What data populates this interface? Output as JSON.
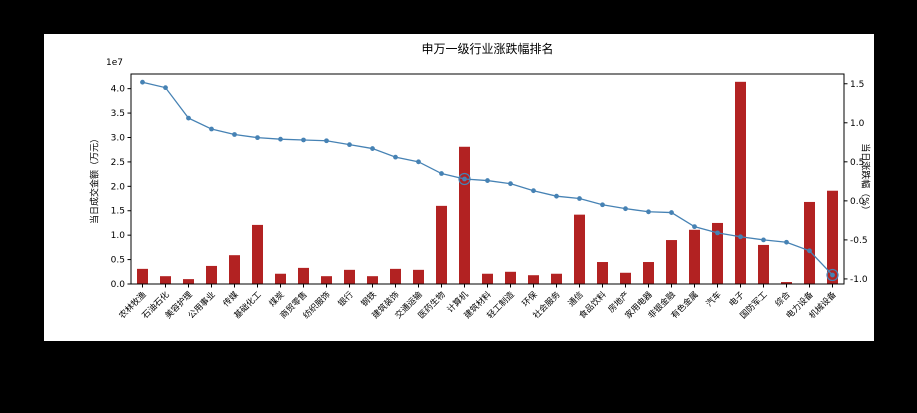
{
  "page": {
    "background": "#000000"
  },
  "figure": {
    "title": "申万一级行业涨跌幅排名",
    "background": "#ffffff",
    "left_axis": {
      "label": "当日成交金额（万元）",
      "offset_text": "1e7",
      "ticks": [
        "0.0",
        "0.5",
        "1.0",
        "1.5",
        "2.0",
        "2.5",
        "3.0",
        "3.5",
        "4.0"
      ]
    },
    "right_axis": {
      "label": "当日涨跌幅（%）",
      "ticks": [
        "-1.0",
        "-0.5",
        "0.0",
        "0.5",
        "1.0",
        "1.5"
      ]
    },
    "colors": {
      "bar": "#b22222",
      "line": "#4682b4",
      "axis": "#000000",
      "text": "#000000"
    }
  },
  "chart_data": {
    "type": "bar",
    "subtype": "dual-axis bar + line",
    "title": "申万一级行业涨跌幅排名",
    "xlabel": "",
    "ylabel_left": "当日成交金额（万元）",
    "ylabel_right": "当日涨跌幅（%）",
    "grid": false,
    "legend_position": "none",
    "left_ylim": [
      0,
      4.3
    ],
    "left_unit_multiplier": "1e7",
    "right_ylim": [
      -1.065,
      1.625
    ],
    "categories": [
      "农林牧渔",
      "石油石化",
      "美容护理",
      "公用事业",
      "传媒",
      "基础化工",
      "煤炭",
      "商贸零售",
      "纺织服饰",
      "银行",
      "钢铁",
      "建筑装饰",
      "交通运输",
      "医药生物",
      "计算机",
      "建筑材料",
      "轻工制造",
      "环保",
      "社会服务",
      "通信",
      "食品饮料",
      "房地产",
      "家用电器",
      "非银金融",
      "有色金属",
      "汽车",
      "电子",
      "国防军工",
      "综合",
      "电力设备",
      "机械设备"
    ],
    "series": [
      {
        "name": "当日成交金额（万元）",
        "type": "bar",
        "axis": "left",
        "unit": "1e7 万元",
        "values": [
          0.31,
          0.16,
          0.1,
          0.37,
          0.59,
          1.21,
          0.21,
          0.33,
          0.16,
          0.29,
          0.16,
          0.31,
          0.29,
          1.6,
          2.81,
          0.21,
          0.25,
          0.18,
          0.21,
          1.42,
          0.45,
          0.23,
          0.45,
          0.9,
          1.11,
          1.25,
          4.14,
          0.8,
          0.04,
          1.68,
          1.91
        ]
      },
      {
        "name": "当日涨跌幅（%）",
        "type": "line",
        "axis": "right",
        "unit": "%",
        "values": [
          1.52,
          1.45,
          1.06,
          0.92,
          0.85,
          0.81,
          0.79,
          0.78,
          0.77,
          0.72,
          0.67,
          0.56,
          0.5,
          0.35,
          0.28,
          0.26,
          0.22,
          0.13,
          0.06,
          0.03,
          -0.05,
          -0.1,
          -0.14,
          -0.15,
          -0.33,
          -0.41,
          -0.46,
          -0.5,
          -0.53,
          -0.64,
          -0.95
        ]
      }
    ],
    "highlight_indices": [
      14,
      30
    ]
  }
}
